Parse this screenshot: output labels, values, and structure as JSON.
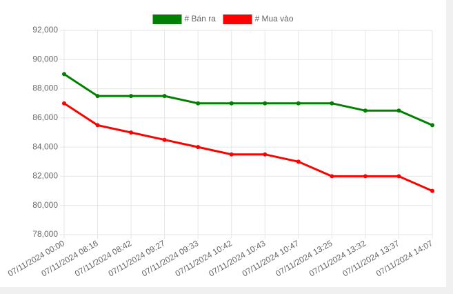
{
  "chart_data": {
    "type": "line",
    "categories": [
      "07/11/2024 00:00",
      "07/11/2024 08:16",
      "07/11/2024 08:42",
      "07/11/2024 09:27",
      "07/11/2024 09:33",
      "07/11/2024 10:42",
      "07/11/2024 10:43",
      "07/11/2024 10:47",
      "07/11/2024 13:25",
      "07/11/2024 13:32",
      "07/11/2024 13:37",
      "07/11/2024 14:07"
    ],
    "series": [
      {
        "name": "# Bán ra",
        "color": "#008000",
        "values": [
          89000,
          87500,
          87500,
          87500,
          87000,
          87000,
          87000,
          87000,
          87000,
          86500,
          86500,
          85500
        ]
      },
      {
        "name": "# Mua vào",
        "color": "#ff0000",
        "values": [
          87000,
          85500,
          85000,
          84500,
          84000,
          83500,
          83500,
          83000,
          82000,
          82000,
          82000,
          81000
        ]
      }
    ],
    "ylim": [
      78000,
      92000
    ],
    "yticks": [
      {
        "value": 78000,
        "label": "78,000"
      },
      {
        "value": 80000,
        "label": "80,000"
      },
      {
        "value": 82000,
        "label": "82,000"
      },
      {
        "value": 84000,
        "label": "84,000"
      },
      {
        "value": 86000,
        "label": "86,000"
      },
      {
        "value": 88000,
        "label": "88,000"
      },
      {
        "value": 90000,
        "label": "90,000"
      },
      {
        "value": 92000,
        "label": "92,000"
      }
    ],
    "grid": true,
    "legend": "top"
  }
}
